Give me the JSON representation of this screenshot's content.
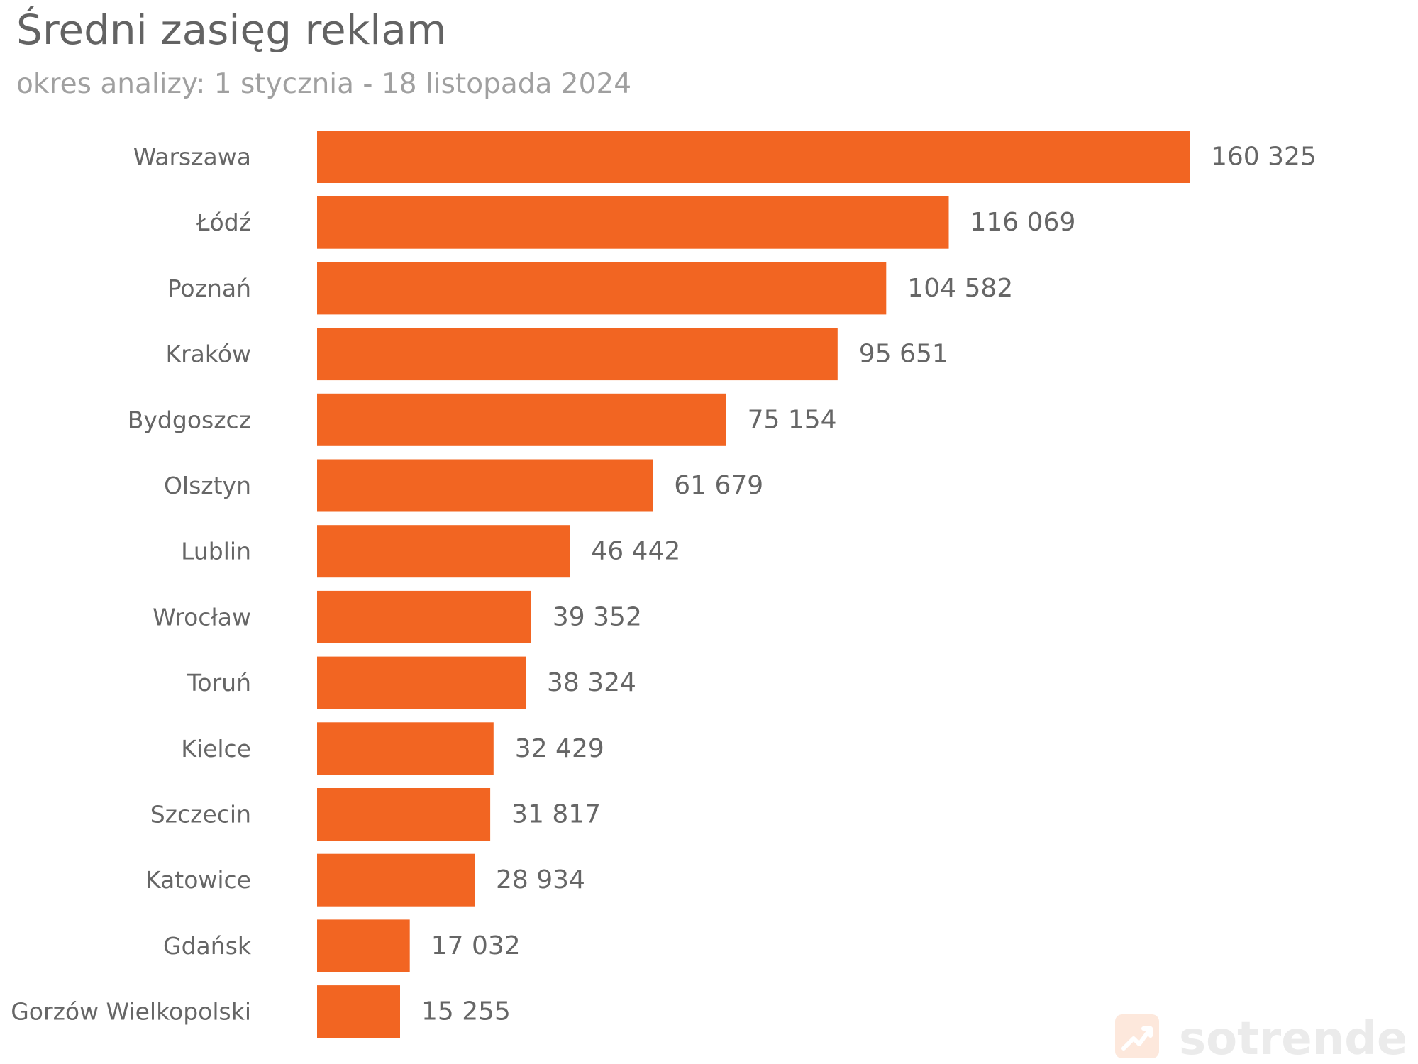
{
  "header": {
    "title": "Średni zasięg reklam",
    "subtitle": "okres analizy: 1 stycznia - 18 listopada 2024"
  },
  "colors": {
    "bar": "#F26522",
    "category_label": "#666666",
    "value_label": "#666666",
    "logo": "#ebebeb"
  },
  "logo": {
    "text": "sotrender",
    "icon": "trend-up-icon"
  },
  "chart_data": {
    "type": "bar",
    "orientation": "horizontal",
    "title": "Średni zasięg reklam",
    "subtitle": "okres analizy: 1 stycznia - 18 listopada 2024",
    "xlabel": "",
    "ylabel": "",
    "grid": false,
    "legend": "none",
    "xlim": [
      0,
      175000
    ],
    "categories": [
      "Warszawa",
      "Łódź",
      "Poznań",
      "Kraków",
      "Bydgoszcz",
      "Olsztyn",
      "Lublin",
      "Wrocław",
      "Toruń",
      "Kielce",
      "Szczecin",
      "Katowice",
      "Gdańsk",
      "Gorzów Wielkopolski"
    ],
    "values": [
      160325,
      116069,
      104582,
      95651,
      75154,
      61679,
      46442,
      39352,
      38324,
      32429,
      31817,
      28934,
      17032,
      15255
    ],
    "value_labels": [
      "160 325",
      "116 069",
      "104 582",
      "95 651",
      "75 154",
      "61 679",
      "46 442",
      "39 352",
      "38 324",
      "32 429",
      "31 817",
      "28 934",
      "17 032",
      "15 255"
    ]
  }
}
